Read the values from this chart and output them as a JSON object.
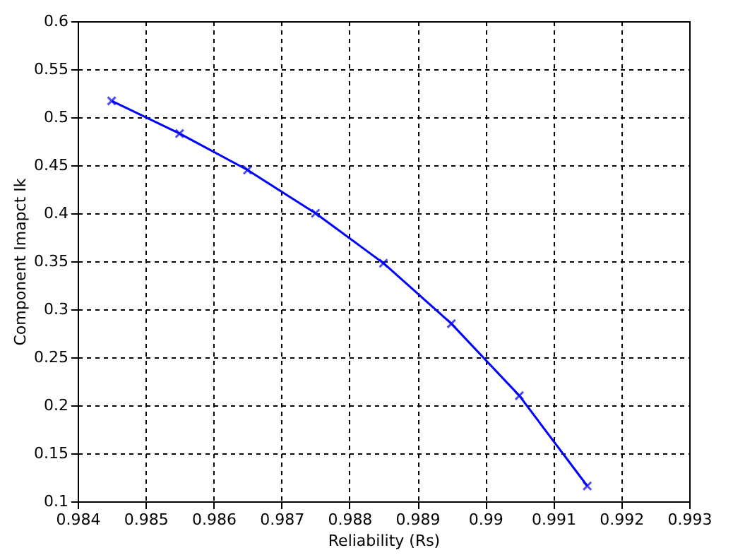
{
  "chart_data": {
    "type": "line",
    "xlabel": "Reliability (Rs)",
    "ylabel": "Component Imapct Ik",
    "series": [
      {
        "color": "#0000ff",
        "x": [
          0.9845,
          0.9855,
          0.9865,
          0.9875,
          0.9885,
          0.9895,
          0.9905,
          0.9915
        ],
        "values": [
          0.517,
          0.483,
          0.445,
          0.4,
          0.348,
          0.285,
          0.21,
          0.116
        ]
      }
    ],
    "xlim": [
      0.984,
      0.993
    ],
    "xticks": [
      0.984,
      0.985,
      0.986,
      0.987,
      0.988,
      0.989,
      0.99,
      0.991,
      0.992,
      0.993
    ],
    "ylim": [
      0.1,
      0.6
    ],
    "yticks": [
      0.1,
      0.15,
      0.2,
      0.25,
      0.3,
      0.35,
      0.4,
      0.45,
      0.5,
      0.55,
      0.6
    ],
    "grid": true,
    "marker": "cross",
    "line_style": "solid"
  }
}
